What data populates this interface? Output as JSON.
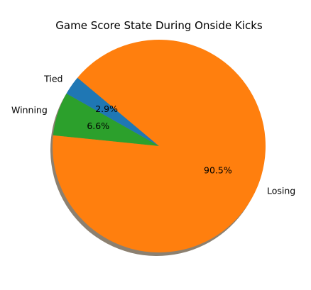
{
  "chart_data": {
    "type": "pie",
    "title": "Game Score State During Onside Kicks",
    "slices": [
      {
        "label": "Tied",
        "value": 2.9,
        "pct_label": "2.9%",
        "color": "#1f77b4"
      },
      {
        "label": "Winning",
        "value": 6.6,
        "pct_label": "6.6%",
        "color": "#2ca02c"
      },
      {
        "label": "Losing",
        "value": 90.5,
        "pct_label": "90.5%",
        "color": "#ff7f0e"
      }
    ],
    "start_angle_deg": 140,
    "shadow": true,
    "shadow_color": "#8c8070"
  }
}
